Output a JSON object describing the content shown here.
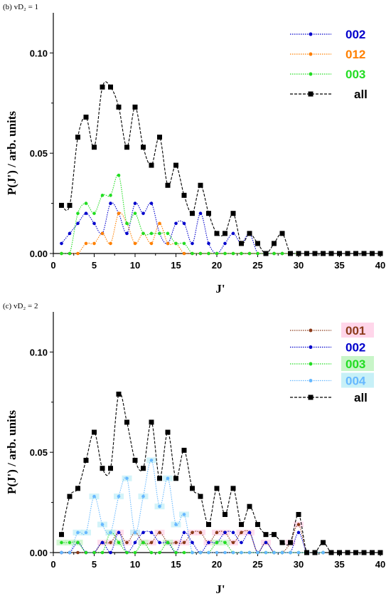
{
  "chart_data": [
    {
      "type": "line",
      "panel_label": "(b) vD₂ = 1",
      "xlabel": "J'",
      "ylabel": "P(J') / arb. units",
      "xlim": [
        0,
        40
      ],
      "ylim": [
        0,
        0.12
      ],
      "x_ticks": [
        0,
        5,
        10,
        15,
        20,
        25,
        30,
        35,
        40
      ],
      "y_ticks": [
        0.0,
        0.05,
        0.1
      ],
      "y_tick_labels": [
        "0.00",
        "0.05",
        "0.10"
      ],
      "grid": false,
      "legend_position": "top-right",
      "series": [
        {
          "name": "002",
          "color": "#0000cc",
          "marker": "circle",
          "line": "dotted",
          "x": [
            1,
            2,
            3,
            4,
            5,
            6,
            7,
            8,
            9,
            10,
            11,
            12,
            13,
            14,
            15,
            16,
            17,
            18,
            19,
            20,
            21,
            22,
            23,
            24,
            25,
            26,
            27,
            28,
            29,
            30
          ],
          "y": [
            0.005,
            0.01,
            0.015,
            0.02,
            0.015,
            0.01,
            0.025,
            0.02,
            0.01,
            0.025,
            0.02,
            0.025,
            0.01,
            0.005,
            0.015,
            0.015,
            0.005,
            0.02,
            0.005,
            0,
            0.005,
            0.01,
            0.005,
            0.01,
            0,
            0,
            0,
            0,
            0,
            0
          ]
        },
        {
          "name": "012",
          "color": "#ff8000",
          "marker": "circle",
          "line": "dotted",
          "x": [
            1,
            2,
            3,
            4,
            5,
            6,
            7,
            8,
            9,
            10,
            11,
            12,
            13,
            14,
            15,
            16,
            17,
            18,
            19,
            20,
            21,
            22,
            23,
            24,
            25,
            26,
            27,
            28,
            29,
            30
          ],
          "y": [
            0,
            0,
            0,
            0.005,
            0.005,
            0.01,
            0.005,
            0.02,
            0.015,
            0.005,
            0.01,
            0.005,
            0.015,
            0.005,
            0.005,
            0,
            0,
            0,
            0,
            0,
            0,
            0,
            0,
            0,
            0,
            0,
            0,
            0,
            0,
            0
          ]
        },
        {
          "name": "003",
          "color": "#22dd22",
          "marker": "circle",
          "line": "dotted",
          "x": [
            1,
            2,
            3,
            4,
            5,
            6,
            7,
            8,
            9,
            10,
            11,
            12,
            13,
            14,
            15,
            16,
            17,
            18,
            19,
            20,
            21,
            22,
            23,
            24,
            25,
            26,
            27,
            28,
            29,
            30
          ],
          "y": [
            0,
            0,
            0.02,
            0.025,
            0.02,
            0.029,
            0.029,
            0.039,
            0.015,
            0.02,
            0.01,
            0.01,
            0.01,
            0.01,
            0.005,
            0.005,
            0,
            0,
            0,
            0,
            0,
            0,
            0,
            0,
            0,
            0,
            0,
            0,
            0,
            0
          ]
        },
        {
          "name": "all",
          "color": "#000000",
          "marker": "square",
          "line": "dashed",
          "x": [
            1,
            2,
            3,
            4,
            5,
            6,
            7,
            8,
            9,
            10,
            11,
            12,
            13,
            14,
            15,
            16,
            17,
            18,
            19,
            20,
            21,
            22,
            23,
            24,
            25,
            26,
            27,
            28,
            29,
            30,
            31,
            32,
            33,
            34,
            35,
            36,
            37,
            38,
            39,
            40
          ],
          "y": [
            0.024,
            0.024,
            0.058,
            0.068,
            0.053,
            0.083,
            0.083,
            0.073,
            0.053,
            0.073,
            0.053,
            0.044,
            0.058,
            0.034,
            0.044,
            0.029,
            0.02,
            0.034,
            0.02,
            0.01,
            0.01,
            0.02,
            0.005,
            0.01,
            0.005,
            0,
            0.005,
            0.01,
            0,
            0,
            0,
            0,
            0,
            0,
            0,
            0,
            0,
            0,
            0,
            0
          ]
        }
      ]
    },
    {
      "type": "line",
      "panel_label": "(c) vD₂ = 2",
      "xlabel": "J'",
      "ylabel": "P(J') / arb. units",
      "xlim": [
        0,
        40
      ],
      "ylim": [
        0,
        0.12
      ],
      "x_ticks": [
        0,
        5,
        10,
        15,
        20,
        25,
        30,
        35,
        40
      ],
      "y_ticks": [
        0.0,
        0.05,
        0.1
      ],
      "y_tick_labels": [
        "0.00",
        "0.05",
        "0.10"
      ],
      "grid": false,
      "legend_position": "top-right",
      "series": [
        {
          "name": "001",
          "color": "#8b3a1a",
          "marker": "circle",
          "line": "dotted",
          "highlight": "#ffd6ea",
          "x": [
            1,
            2,
            3,
            4,
            5,
            6,
            7,
            8,
            9,
            10,
            11,
            12,
            13,
            14,
            15,
            16,
            17,
            18,
            19,
            20,
            21,
            22,
            23,
            24,
            25,
            26,
            27,
            28,
            29,
            30,
            31,
            32,
            33
          ],
          "y": [
            0,
            0,
            0,
            0,
            0,
            0.005,
            0.005,
            0.01,
            0.005,
            0.01,
            0.005,
            0.005,
            0.01,
            0.005,
            0.005,
            0.005,
            0.01,
            0.01,
            0.005,
            0.01,
            0.01,
            0.005,
            0.01,
            0.01,
            0,
            0.005,
            0,
            0,
            0.005,
            0.014,
            0,
            0,
            0
          ]
        },
        {
          "name": "002",
          "color": "#0000cc",
          "marker": "circle",
          "line": "dotted",
          "highlight": null,
          "x": [
            1,
            2,
            3,
            4,
            5,
            6,
            7,
            8,
            9,
            10,
            11,
            12,
            13,
            14,
            15,
            16,
            17,
            18,
            19,
            20,
            21,
            22,
            23,
            24,
            25,
            26,
            27,
            28,
            29,
            30,
            31,
            32,
            33
          ],
          "y": [
            0,
            0,
            0.005,
            0,
            0,
            0.005,
            0,
            0.01,
            0,
            0.005,
            0.01,
            0.01,
            0.005,
            0.005,
            0,
            0.01,
            0.005,
            0,
            0.005,
            0.005,
            0.01,
            0.01,
            0.005,
            0.01,
            0,
            0.005,
            0,
            0,
            0,
            0.01,
            0,
            0,
            0
          ]
        },
        {
          "name": "003",
          "color": "#22dd22",
          "marker": "circle",
          "line": "dotted",
          "highlight": "#c8f5c8",
          "x": [
            1,
            2,
            3,
            4,
            5,
            6,
            7,
            8,
            9,
            10,
            11,
            12,
            13,
            14,
            15,
            16,
            17,
            18,
            19,
            20,
            21,
            22,
            23,
            24,
            25,
            26,
            27,
            28,
            29,
            30,
            31,
            32,
            33
          ],
          "y": [
            0.005,
            0.005,
            0.005,
            0,
            0,
            0,
            0.01,
            0.005,
            0,
            0,
            0.005,
            0,
            0,
            0.005,
            0,
            0,
            0,
            0,
            0,
            0.005,
            0.005,
            0,
            0,
            0,
            0,
            0,
            0,
            0,
            0,
            0,
            0,
            0,
            0
          ]
        },
        {
          "name": "004",
          "color": "#66b8ff",
          "marker": "circle",
          "line": "dotted",
          "highlight": "#c7f0f7",
          "x": [
            1,
            2,
            3,
            4,
            5,
            6,
            7,
            8,
            9,
            10,
            11,
            12,
            13,
            14,
            15,
            16,
            17,
            18,
            19,
            20,
            21,
            22,
            23,
            24,
            25,
            26,
            27,
            28,
            29,
            30,
            31,
            32,
            33
          ],
          "y": [
            0,
            0,
            0.01,
            0.01,
            0.028,
            0.014,
            0.01,
            0.028,
            0.037,
            0.01,
            0.028,
            0.046,
            0.023,
            0.037,
            0.014,
            0.019,
            0,
            0,
            0,
            0,
            0,
            0,
            0,
            0,
            0,
            0,
            0,
            0,
            0,
            0,
            0,
            0,
            0
          ]
        },
        {
          "name": "all",
          "color": "#000000",
          "marker": "square",
          "line": "dashed",
          "highlight": null,
          "x": [
            1,
            2,
            3,
            4,
            5,
            6,
            7,
            8,
            9,
            10,
            11,
            12,
            13,
            14,
            15,
            16,
            17,
            18,
            19,
            20,
            21,
            22,
            23,
            24,
            25,
            26,
            27,
            28,
            29,
            30,
            31,
            32,
            33,
            34,
            35,
            36,
            37,
            38,
            39,
            40
          ],
          "y": [
            0.009,
            0.028,
            0.032,
            0.046,
            0.06,
            0.042,
            0.042,
            0.079,
            0.065,
            0.046,
            0.042,
            0.065,
            0.037,
            0.06,
            0.037,
            0.051,
            0.032,
            0.028,
            0.014,
            0.032,
            0.019,
            0.032,
            0.014,
            0.023,
            0.014,
            0.009,
            0.009,
            0.005,
            0.005,
            0.019,
            0,
            0,
            0.005,
            0,
            0,
            0,
            0,
            0,
            0,
            0
          ]
        }
      ]
    }
  ]
}
